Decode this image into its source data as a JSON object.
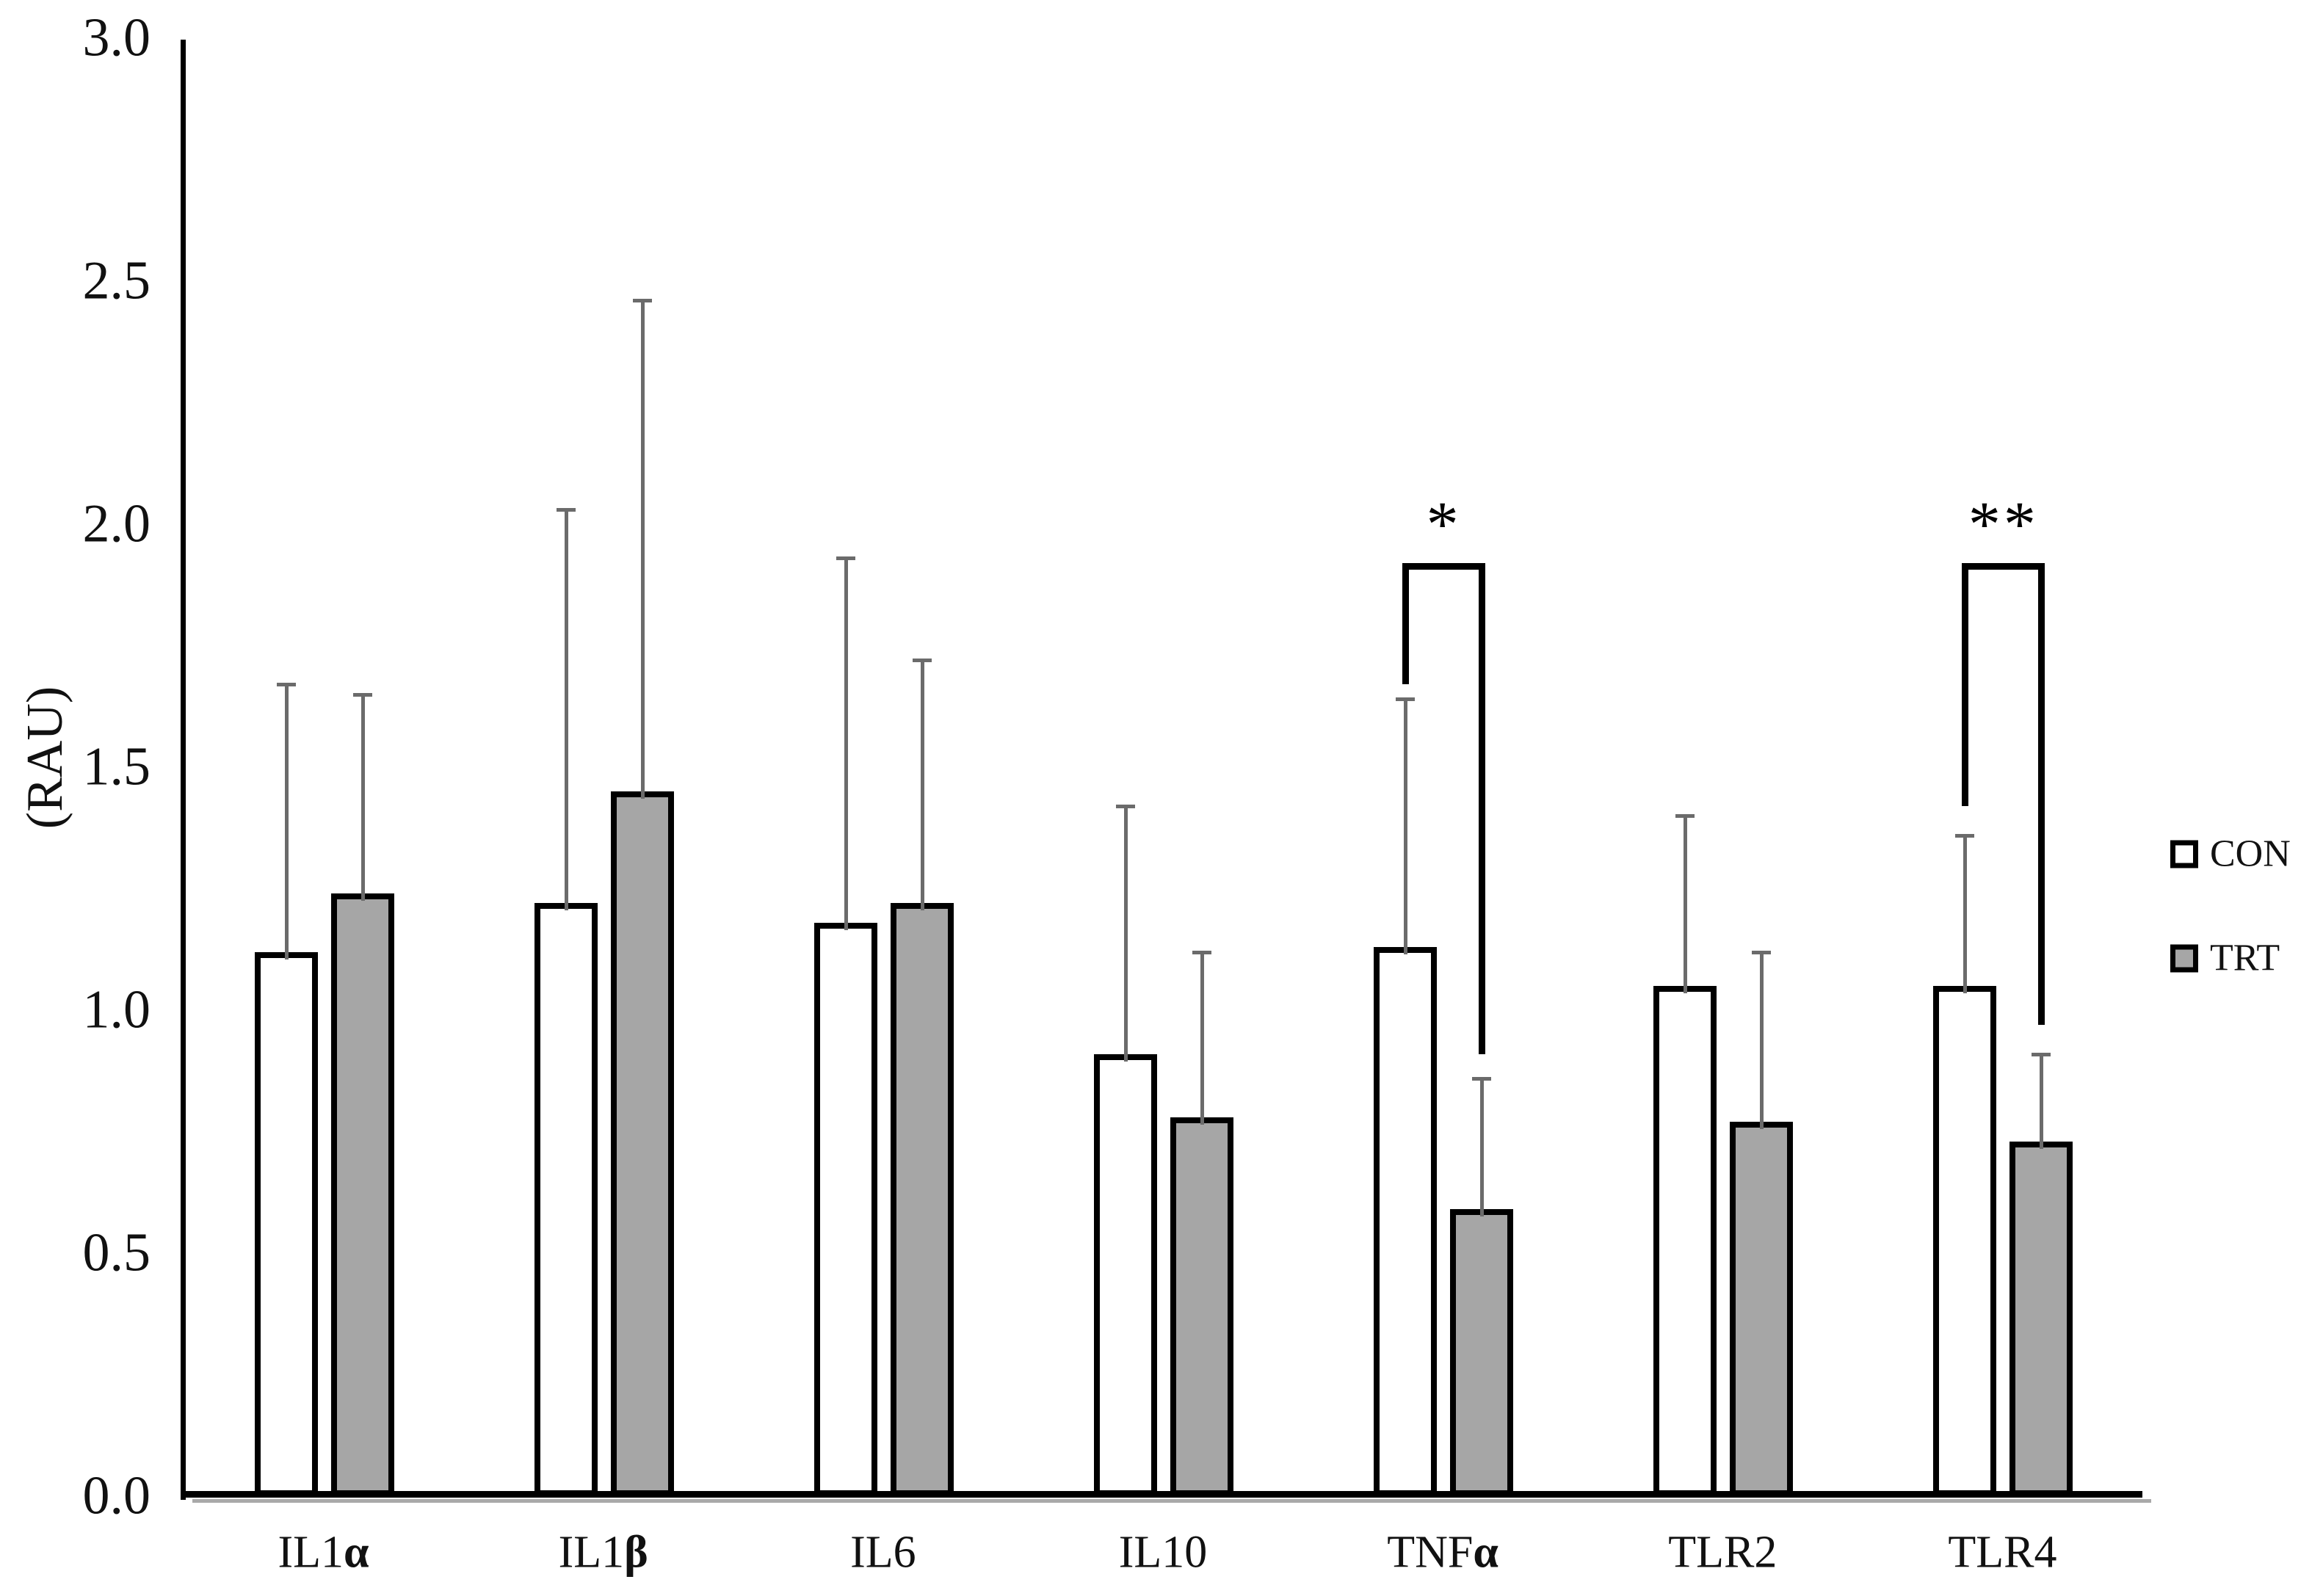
{
  "chart_data": {
    "type": "bar",
    "title": "",
    "ylabel": "(RAU)",
    "xlabel": "",
    "ylim": [
      0.0,
      3.0
    ],
    "ytick_step": 0.5,
    "ytick_labels": [
      "0.0",
      "0.5",
      "1.0",
      "1.5",
      "2.0",
      "2.5",
      "3.0"
    ],
    "grid": false,
    "legend_position": "right",
    "categories": [
      "IL1α",
      "IL1β",
      "IL6",
      "IL10",
      "TNFα",
      "TLR2",
      "TLR4"
    ],
    "series": [
      {
        "name": "CON",
        "fill": "#ffffff",
        "values": [
          1.12,
          1.22,
          1.18,
          0.91,
          1.13,
          1.05,
          1.05
        ],
        "errors_plus": [
          0.55,
          0.81,
          0.75,
          0.51,
          0.51,
          0.35,
          0.31
        ]
      },
      {
        "name": "TRT",
        "fill": "#a6a6a6",
        "values": [
          1.24,
          1.45,
          1.22,
          0.78,
          0.59,
          0.77,
          0.73
        ],
        "errors_plus": [
          0.41,
          1.01,
          0.5,
          0.34,
          0.27,
          0.35,
          0.18
        ]
      }
    ],
    "annotations": [
      {
        "category": "TNFα",
        "symbol": "*",
        "bracket_top": 1.92,
        "left_arm_bottom": 1.67,
        "right_arm_bottom": 0.91
      },
      {
        "category": "TLR4",
        "symbol": "**",
        "bracket_top": 1.92,
        "left_arm_bottom": 1.42,
        "right_arm_bottom": 0.97
      }
    ]
  },
  "colors": {
    "bar_border": "#000000",
    "error_bar": "#6b6b6b",
    "axis": "#000000",
    "text": "#111111",
    "background": "#ffffff"
  },
  "legend": {
    "con_label": "CON",
    "trt_label": "TRT"
  }
}
